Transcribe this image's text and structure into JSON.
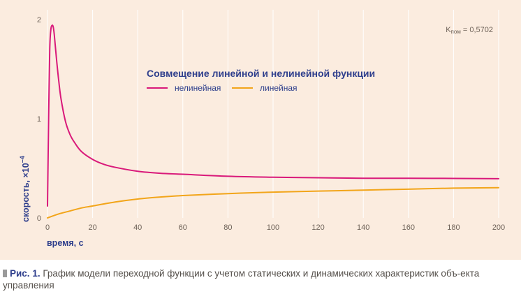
{
  "figure": {
    "caption_label": "Рис. 1.",
    "caption_text": "График модели переходной функции с учетом статических и динамических характеристик объ-екта управления"
  },
  "chart_data": {
    "type": "line",
    "title": "Совмещение линейной и нелинейной функции",
    "annotation": {
      "base": "K",
      "subscript": "пом",
      "suffix": " = 0,5702"
    },
    "xlabel": "время, с",
    "ylabel": "скорость, ×10",
    "ylabel_exponent": "–4",
    "xlim": [
      0,
      200
    ],
    "ylim": [
      0,
      2
    ],
    "xticks": [
      0,
      20,
      40,
      60,
      80,
      100,
      120,
      140,
      160,
      180,
      200
    ],
    "yticks": [
      0,
      1,
      2
    ],
    "grid": {
      "vertical": true,
      "horizontal": false
    },
    "legend_position": "top-center",
    "series": [
      {
        "name": "нелинейная",
        "color": "#d9197a",
        "x": [
          0,
          0.5,
          1,
          1.5,
          2,
          2.5,
          3,
          4,
          5,
          6,
          8,
          10,
          12,
          15,
          20,
          25,
          30,
          40,
          50,
          60,
          80,
          100,
          120,
          140,
          160,
          180,
          200
        ],
        "y": [
          0.12,
          1.0,
          1.7,
          1.9,
          1.94,
          1.93,
          1.85,
          1.6,
          1.38,
          1.2,
          0.97,
          0.84,
          0.76,
          0.67,
          0.59,
          0.54,
          0.51,
          0.47,
          0.45,
          0.44,
          0.42,
          0.41,
          0.405,
          0.4,
          0.4,
          0.398,
          0.395
        ]
      },
      {
        "name": "линейная",
        "color": "#f2a51a",
        "x": [
          0,
          5,
          10,
          15,
          20,
          30,
          40,
          50,
          60,
          80,
          100,
          120,
          140,
          160,
          180,
          200
        ],
        "y": [
          0.0,
          0.04,
          0.07,
          0.1,
          0.12,
          0.16,
          0.19,
          0.21,
          0.225,
          0.245,
          0.26,
          0.27,
          0.28,
          0.29,
          0.3,
          0.305
        ]
      }
    ]
  },
  "colors": {
    "background": "#fbecdf",
    "grid": "#ffffff",
    "text_accent": "#2e3e8c",
    "tick_text": "#6e6258"
  }
}
